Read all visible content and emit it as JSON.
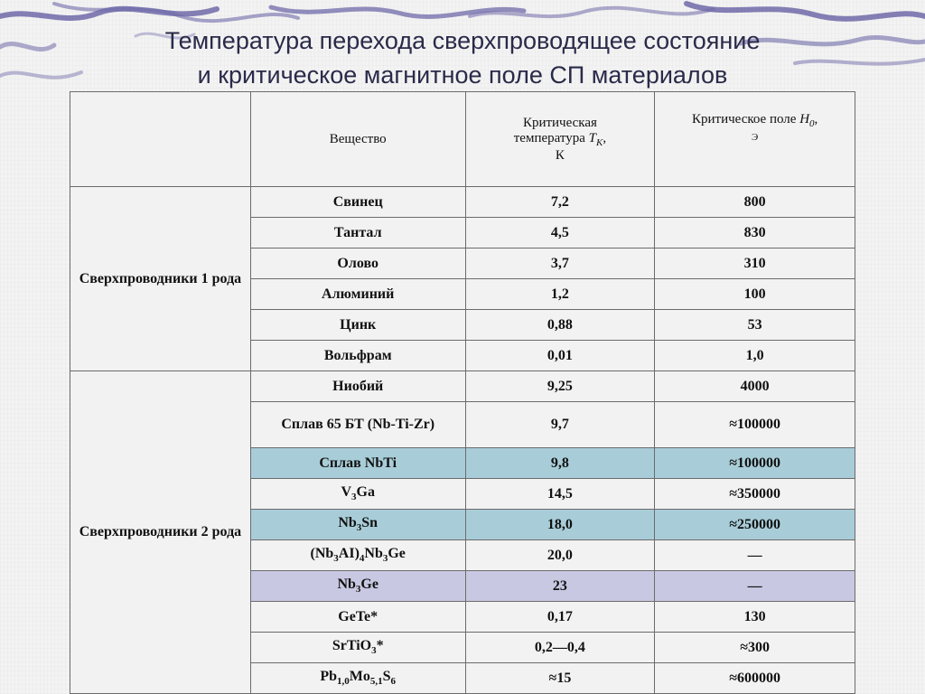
{
  "title": {
    "line1": "Температура перехода сверхпроводящее состояние",
    "line2": "и критическое магнитное поле  СП материалов"
  },
  "table": {
    "headers": {
      "substance": "Вещество",
      "crit_temp_a": "Критическая",
      "crit_temp_b": "температура",
      "crit_temp_sym": "T",
      "crit_temp_sub": "K",
      "crit_temp_unit": "К",
      "crit_field": "Критическое поле",
      "crit_field_sym": "H",
      "crit_field_sub": "0",
      "crit_field_unit": "Э"
    },
    "groups": [
      {
        "label": "Сверхпроводники 1 рода"
      },
      {
        "label": "Сверхпроводники 2 рода"
      }
    ],
    "rows": [
      {
        "substance": "Свинец",
        "temp": "7,2",
        "field": "800"
      },
      {
        "substance": "Тантал",
        "temp": "4,5",
        "field": "830"
      },
      {
        "substance": "Олово",
        "temp": "3,7",
        "field": "310"
      },
      {
        "substance": "Алюминий",
        "temp": "1,2",
        "field": "100"
      },
      {
        "substance": "Цинк",
        "temp": "0,88",
        "field": "53"
      },
      {
        "substance": "Вольфрам",
        "temp": "0,01",
        "field": "1,0"
      },
      {
        "substance": "Ниобий",
        "temp": "9,25",
        "field": "4000"
      },
      {
        "substance": "Сплав 65 БТ (Nb-Ti-Zr)",
        "temp": "9,7",
        "field": "≈100000"
      },
      {
        "substance": "Сплав NbTi",
        "temp": "9,8",
        "field": "≈100000"
      },
      {
        "substance": "V3Ga",
        "temp": "14,5",
        "field": "≈350000"
      },
      {
        "substance": "Nb3Sn",
        "temp": "18,0",
        "field": "≈250000"
      },
      {
        "substance": "(Nb3AI)4Nb3Ge",
        "temp": "20,0",
        "field": "—"
      },
      {
        "substance": "Nb3Ge",
        "temp": "23",
        "field": "—"
      },
      {
        "substance": "GeTe*",
        "temp": "0,17",
        "field": "130"
      },
      {
        "substance": "SrTiO3*",
        "temp": "0,2—0,4",
        "field": "≈300"
      },
      {
        "substance": "Pb1,0Mo5,1S6",
        "temp": "≈15",
        "field": "≈600000"
      }
    ],
    "formula_parts": {
      "v3ga": [
        "V",
        "3",
        "Ga"
      ],
      "nb3sn": [
        "Nb",
        "3",
        "Sn"
      ],
      "nb3al_nb3ge": [
        "(Nb",
        "3",
        "AI)",
        "4",
        "Nb",
        "3",
        "Ge"
      ],
      "nb3ge": [
        "Nb",
        "3",
        "Ge"
      ],
      "srtio3": [
        "SrTiO",
        "3",
        "*"
      ],
      "pbmos": [
        "Pb",
        "1,0",
        "Mo",
        "5,1",
        "S",
        "6"
      ]
    }
  },
  "colors": {
    "highlight_teal": "#a8cdd8",
    "highlight_lavender": "#c8c8e2",
    "title_color": "#2a2a4a",
    "ribbon_color": "#6f6aa8"
  }
}
